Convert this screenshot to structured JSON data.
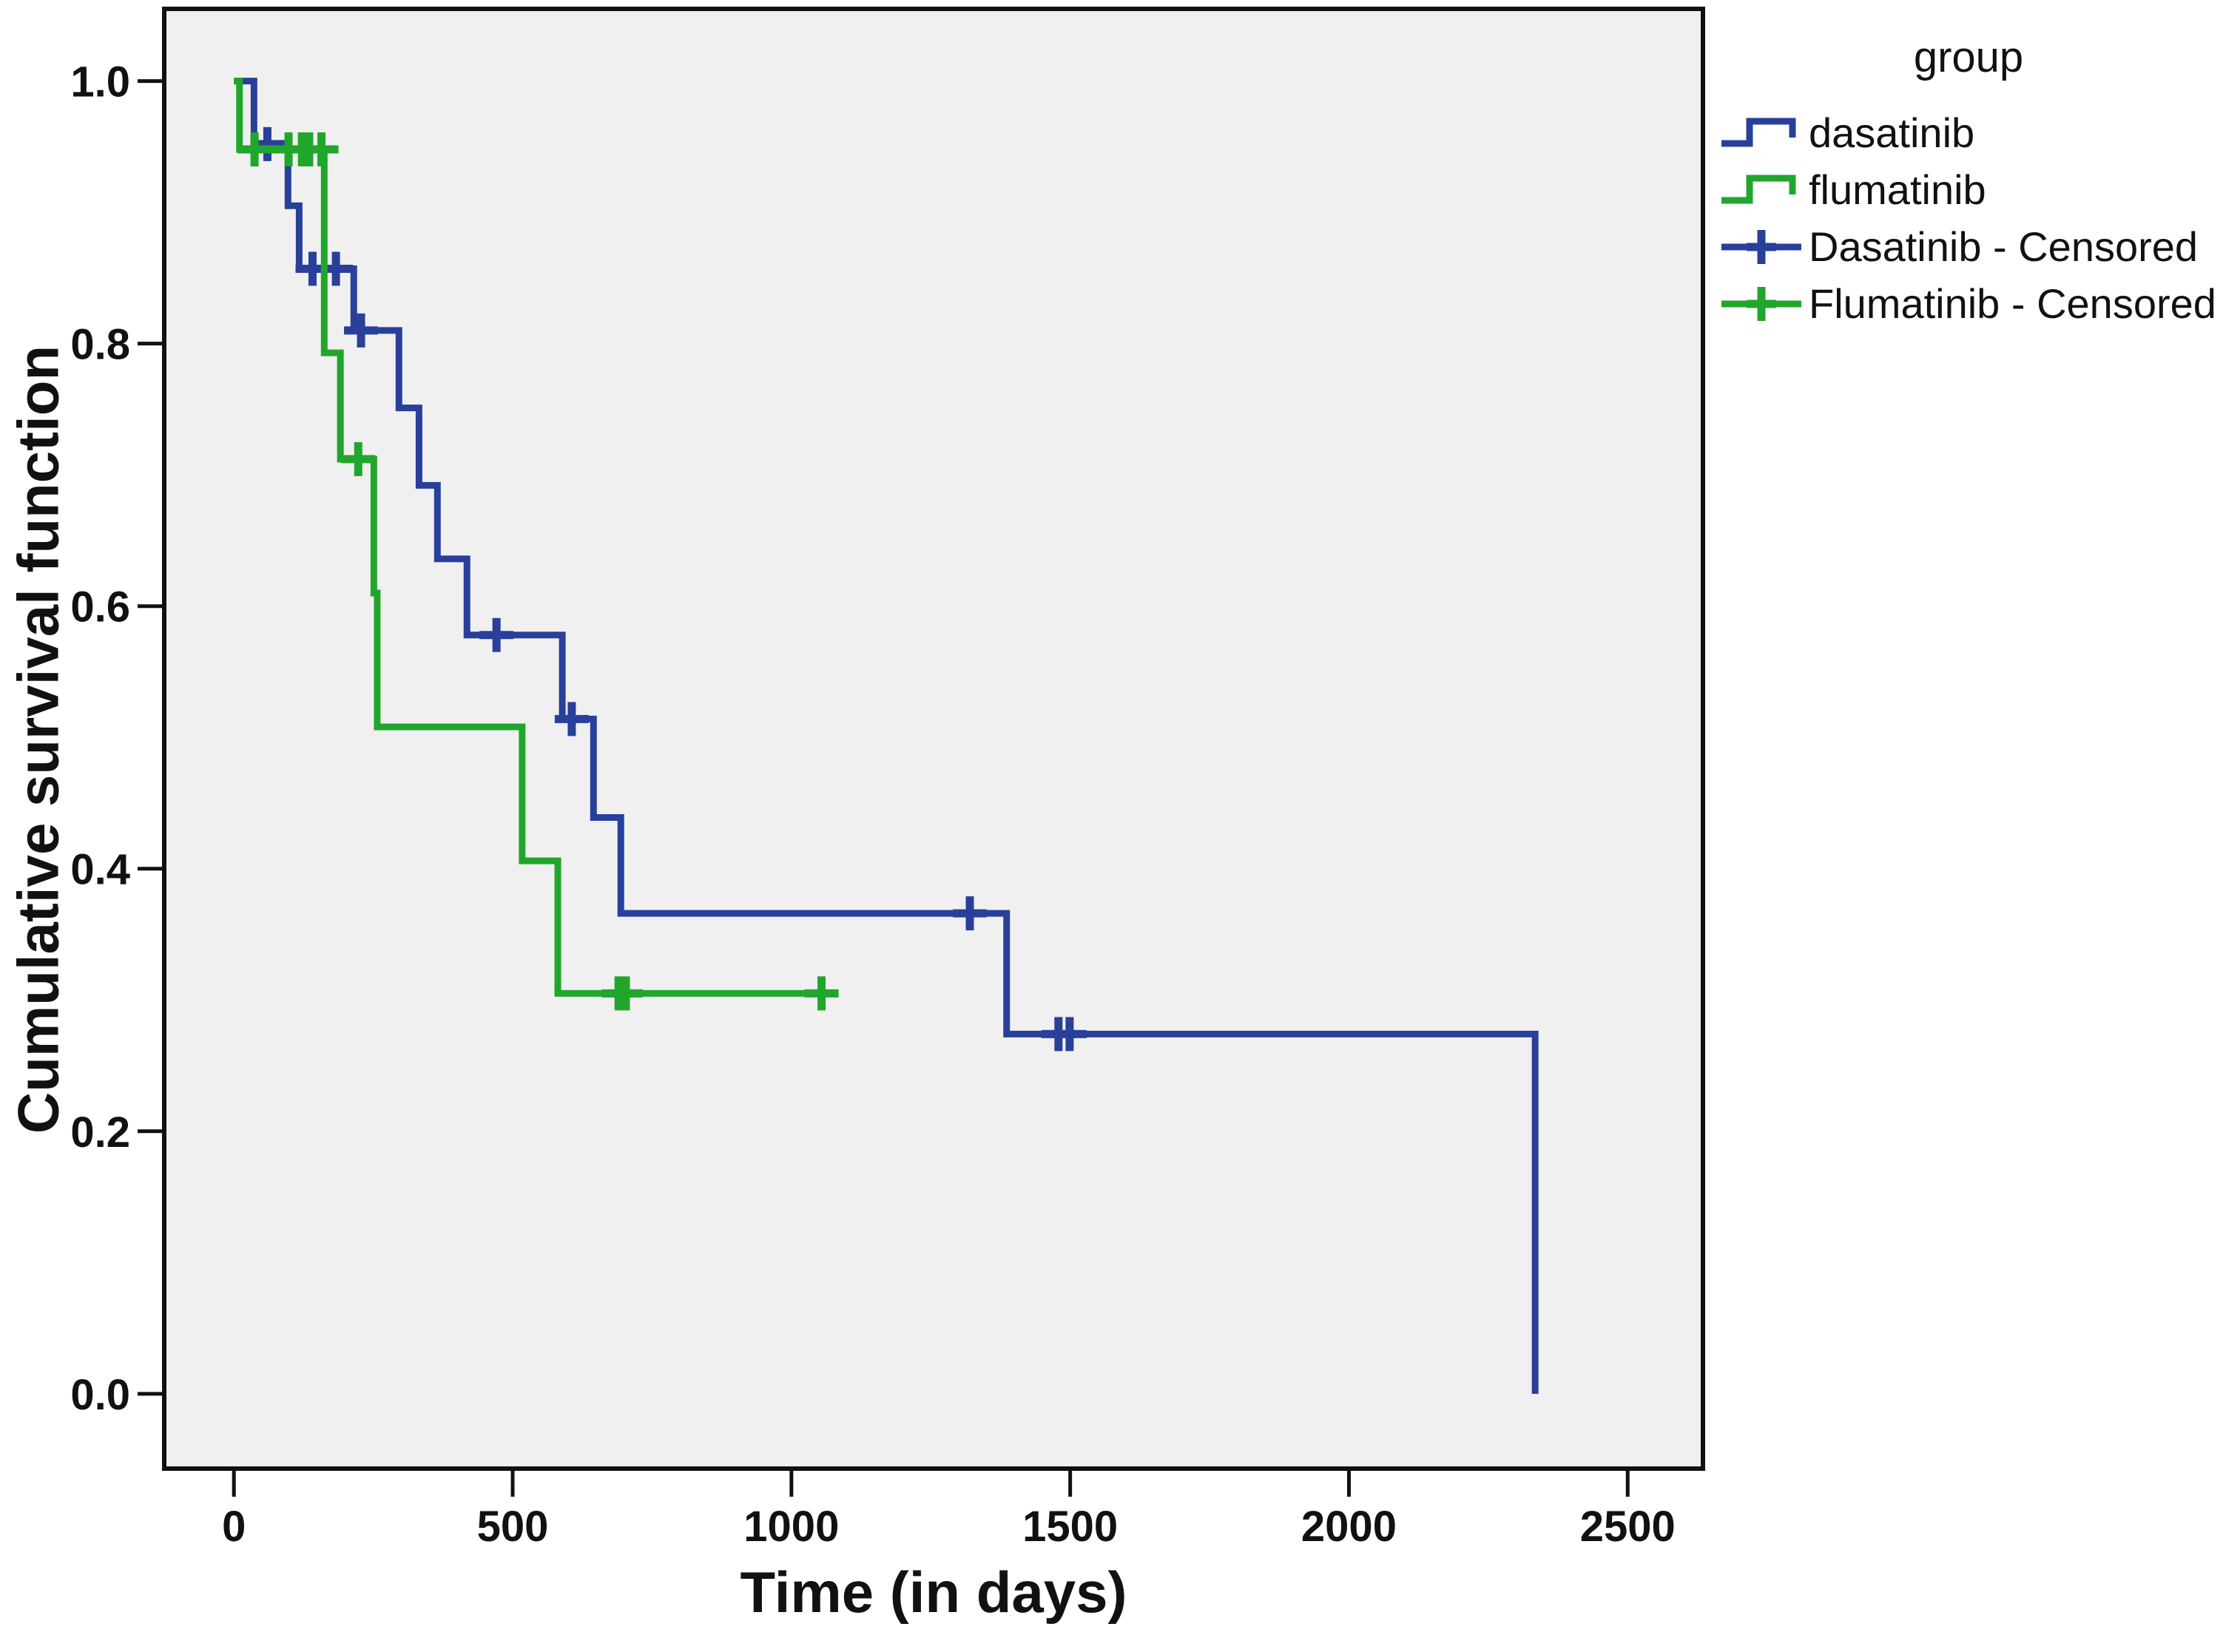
{
  "legend": {
    "title": "group",
    "items": [
      {
        "label": "dasatinib",
        "glyph": "step-line-icon",
        "color": "#28409A"
      },
      {
        "label": "flumatinib",
        "glyph": "step-line-icon",
        "color": "#21A62C"
      },
      {
        "label": "Dasatinib - Censored",
        "glyph": "censor-plus-icon",
        "color": "#28409A"
      },
      {
        "label": "Flumatinib - Censored",
        "glyph": "censor-plus-icon",
        "color": "#21A62C"
      }
    ]
  },
  "chart_data": {
    "type": "line",
    "subtype": "kaplan-meier-step",
    "title": "",
    "xlabel": "Time (in days)",
    "ylabel": "Cumulative survival function",
    "xlim": [
      -125,
      2635
    ],
    "ylim": [
      -0.057,
      1.055
    ],
    "grid": false,
    "plot_background": "#f0f0f0",
    "axis_color": "#111111",
    "legend_position": "top-right",
    "x_ticks": [
      {
        "value": 0,
        "label": "0"
      },
      {
        "value": 500,
        "label": "500"
      },
      {
        "value": 1000,
        "label": "1000"
      },
      {
        "value": 1500,
        "label": "1500"
      },
      {
        "value": 2000,
        "label": "2000"
      },
      {
        "value": 2500,
        "label": "2500"
      }
    ],
    "y_ticks": [
      {
        "value": 1.0,
        "label": "1.0"
      },
      {
        "value": 0.8,
        "label": "0.8"
      },
      {
        "value": 0.6,
        "label": "0.6"
      },
      {
        "value": 0.4,
        "label": "0.4"
      },
      {
        "value": 0.2,
        "label": "0.2"
      },
      {
        "value": 0.0,
        "label": "0.0"
      }
    ],
    "series": [
      {
        "name": "dasatinib",
        "color": "#28409A",
        "points": [
          [
            0,
            1.0
          ],
          [
            36,
            0.952
          ],
          [
            97,
            0.905
          ],
          [
            117,
            0.857
          ],
          [
            215,
            0.81
          ],
          [
            296,
            0.751
          ],
          [
            332,
            0.692
          ],
          [
            365,
            0.636
          ],
          [
            418,
            0.578
          ],
          [
            589,
            0.514
          ],
          [
            645,
            0.439
          ],
          [
            694,
            0.366
          ],
          [
            1386,
            0.274
          ],
          [
            2334,
            0.0
          ]
        ],
        "end_x": 2334,
        "censored": [
          [
            60,
            0.952
          ],
          [
            141,
            0.857
          ],
          [
            183,
            0.857
          ],
          [
            228,
            0.81
          ],
          [
            471,
            0.578
          ],
          [
            606,
            0.514
          ],
          [
            1320,
            0.366
          ],
          [
            1479,
            0.274
          ],
          [
            1499,
            0.274
          ]
        ]
      },
      {
        "name": "flumatinib",
        "color": "#21A62C",
        "points": [
          [
            0,
            1.0
          ],
          [
            10,
            0.948
          ],
          [
            162,
            0.793
          ],
          [
            191,
            0.712
          ],
          [
            251,
            0.61
          ],
          [
            257,
            0.508
          ],
          [
            517,
            0.406
          ],
          [
            581,
            0.305
          ]
        ],
        "end_x": 1054,
        "censored": [
          [
            37,
            0.948
          ],
          [
            98,
            0.948
          ],
          [
            122,
            0.948
          ],
          [
            135,
            0.948
          ],
          [
            157,
            0.948
          ],
          [
            223,
            0.712
          ],
          [
            690,
            0.305
          ],
          [
            703,
            0.305
          ],
          [
            1054,
            0.305
          ]
        ]
      }
    ]
  }
}
